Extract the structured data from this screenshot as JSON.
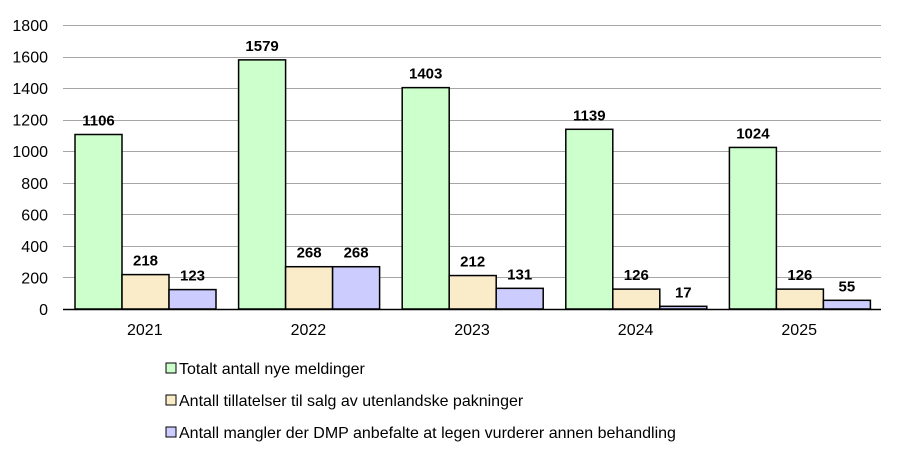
{
  "chart_data": {
    "type": "bar",
    "title": "",
    "xlabel": "",
    "ylabel": "",
    "categories": [
      "2021",
      "2022",
      "2023",
      "2024",
      "2025"
    ],
    "series": [
      {
        "name": "Totalt antall nye meldinger",
        "values": [
          1106,
          1579,
          1403,
          1139,
          1024
        ],
        "color": "#ccffcc"
      },
      {
        "name": "Antall tillatelser til salg av utenlandske pakninger",
        "values": [
          218,
          268,
          212,
          126,
          126
        ],
        "color": "#fbecc9"
      },
      {
        "name": "Antall mangler der DMP anbefalte at legen vurderer annen behandling",
        "values": [
          123,
          268,
          131,
          17,
          55
        ],
        "color": "#ccccff"
      }
    ],
    "ylim": [
      0,
      1800
    ],
    "yticks": [
      0,
      200,
      400,
      600,
      800,
      1000,
      1200,
      1400,
      1600,
      1800
    ],
    "grid": true,
    "data_labels": true,
    "legend_position": "bottom",
    "colors": {
      "grid": "#a6a6a6",
      "bar_border": "#000000",
      "axis": "#000000"
    }
  }
}
